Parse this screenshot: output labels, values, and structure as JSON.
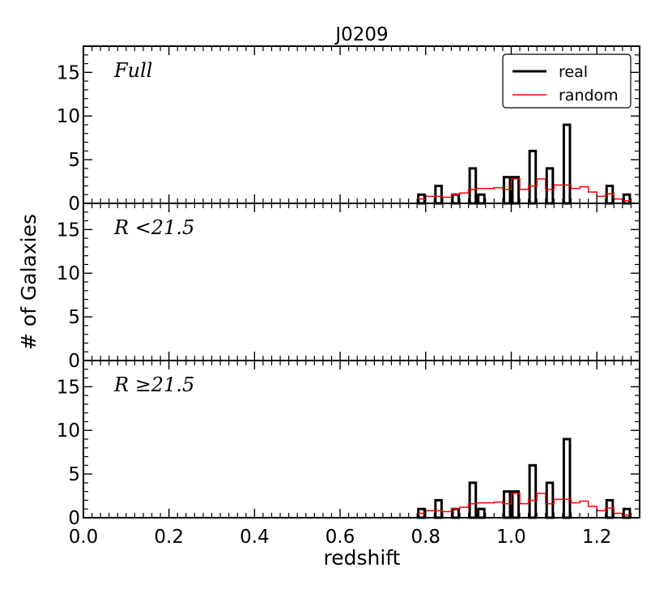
{
  "chart_data": {
    "type": "bar",
    "title": "J0209",
    "xlabel": "redshift",
    "ylabel": "# of Galaxies",
    "xlim": [
      0.0,
      1.3
    ],
    "ylim": [
      0,
      18
    ],
    "x_ticks": [
      "0.0",
      "0.2",
      "0.4",
      "0.6",
      "0.8",
      "1.0",
      "1.2"
    ],
    "x_tick_values": [
      0.0,
      0.2,
      0.4,
      0.6,
      0.8,
      1.0,
      1.2
    ],
    "y_ticks": [
      "0",
      "5",
      "10",
      "15"
    ],
    "y_tick_values": [
      0,
      5,
      10,
      15
    ],
    "grid": false,
    "legend": {
      "placement": "top-right",
      "entries": [
        {
          "label": "real",
          "color": "#000000"
        },
        {
          "label": "random",
          "color": "#ff0000"
        }
      ]
    },
    "bin_width": 0.02,
    "panels": [
      {
        "label": "Full",
        "series": [
          {
            "name": "real",
            "color": "#000000",
            "style": "histogram-bars",
            "bins": [
              {
                "x": 0.78,
                "value": 1
              },
              {
                "x": 0.82,
                "value": 2
              },
              {
                "x": 0.86,
                "value": 1
              },
              {
                "x": 0.9,
                "value": 4
              },
              {
                "x": 0.92,
                "value": 1
              },
              {
                "x": 0.98,
                "value": 3
              },
              {
                "x": 1.0,
                "value": 3
              },
              {
                "x": 1.04,
                "value": 6
              },
              {
                "x": 1.08,
                "value": 4
              },
              {
                "x": 1.12,
                "value": 9
              },
              {
                "x": 1.22,
                "value": 2
              },
              {
                "x": 1.26,
                "value": 1
              }
            ]
          },
          {
            "name": "random",
            "color": "#ff0000",
            "style": "step",
            "bins": [
              {
                "x": 0.78,
                "value": 0.5
              },
              {
                "x": 0.8,
                "value": 0.8
              },
              {
                "x": 0.82,
                "value": 0.8
              },
              {
                "x": 0.84,
                "value": 0.7
              },
              {
                "x": 0.86,
                "value": 1.0
              },
              {
                "x": 0.88,
                "value": 1.2
              },
              {
                "x": 0.9,
                "value": 1.6
              },
              {
                "x": 0.92,
                "value": 1.7
              },
              {
                "x": 0.94,
                "value": 1.7
              },
              {
                "x": 0.96,
                "value": 1.8
              },
              {
                "x": 0.98,
                "value": 1.6
              },
              {
                "x": 1.0,
                "value": 2.8
              },
              {
                "x": 1.02,
                "value": 1.6
              },
              {
                "x": 1.04,
                "value": 2.0
              },
              {
                "x": 1.06,
                "value": 2.8
              },
              {
                "x": 1.08,
                "value": 1.6
              },
              {
                "x": 1.1,
                "value": 2.1
              },
              {
                "x": 1.12,
                "value": 2.1
              },
              {
                "x": 1.14,
                "value": 1.7
              },
              {
                "x": 1.16,
                "value": 1.9
              },
              {
                "x": 1.18,
                "value": 1.3
              },
              {
                "x": 1.2,
                "value": 0.8
              },
              {
                "x": 1.22,
                "value": 1.1
              },
              {
                "x": 1.24,
                "value": 0.5
              },
              {
                "x": 1.26,
                "value": 0.3
              }
            ]
          }
        ]
      },
      {
        "label": "R <21.5",
        "series": []
      },
      {
        "label": "R ≥21.5",
        "series": [
          {
            "name": "real",
            "color": "#000000",
            "style": "histogram-bars",
            "bins": [
              {
                "x": 0.78,
                "value": 1
              },
              {
                "x": 0.82,
                "value": 2
              },
              {
                "x": 0.86,
                "value": 1
              },
              {
                "x": 0.9,
                "value": 4
              },
              {
                "x": 0.92,
                "value": 1
              },
              {
                "x": 0.98,
                "value": 3
              },
              {
                "x": 1.0,
                "value": 3
              },
              {
                "x": 1.04,
                "value": 6
              },
              {
                "x": 1.08,
                "value": 4
              },
              {
                "x": 1.12,
                "value": 9
              },
              {
                "x": 1.22,
                "value": 2
              },
              {
                "x": 1.26,
                "value": 1
              }
            ]
          },
          {
            "name": "random",
            "color": "#ff0000",
            "style": "step",
            "bins": [
              {
                "x": 0.78,
                "value": 0.5
              },
              {
                "x": 0.8,
                "value": 0.8
              },
              {
                "x": 0.82,
                "value": 0.8
              },
              {
                "x": 0.84,
                "value": 0.7
              },
              {
                "x": 0.86,
                "value": 1.0
              },
              {
                "x": 0.88,
                "value": 1.2
              },
              {
                "x": 0.9,
                "value": 1.6
              },
              {
                "x": 0.92,
                "value": 1.7
              },
              {
                "x": 0.94,
                "value": 1.7
              },
              {
                "x": 0.96,
                "value": 1.8
              },
              {
                "x": 0.98,
                "value": 1.6
              },
              {
                "x": 1.0,
                "value": 2.8
              },
              {
                "x": 1.02,
                "value": 1.6
              },
              {
                "x": 1.04,
                "value": 2.0
              },
              {
                "x": 1.06,
                "value": 2.8
              },
              {
                "x": 1.08,
                "value": 1.6
              },
              {
                "x": 1.1,
                "value": 2.1
              },
              {
                "x": 1.12,
                "value": 2.1
              },
              {
                "x": 1.14,
                "value": 1.7
              },
              {
                "x": 1.16,
                "value": 1.9
              },
              {
                "x": 1.18,
                "value": 1.3
              },
              {
                "x": 1.2,
                "value": 0.8
              },
              {
                "x": 1.22,
                "value": 1.1
              },
              {
                "x": 1.24,
                "value": 0.5
              },
              {
                "x": 1.26,
                "value": 0.3
              }
            ]
          }
        ]
      }
    ]
  }
}
